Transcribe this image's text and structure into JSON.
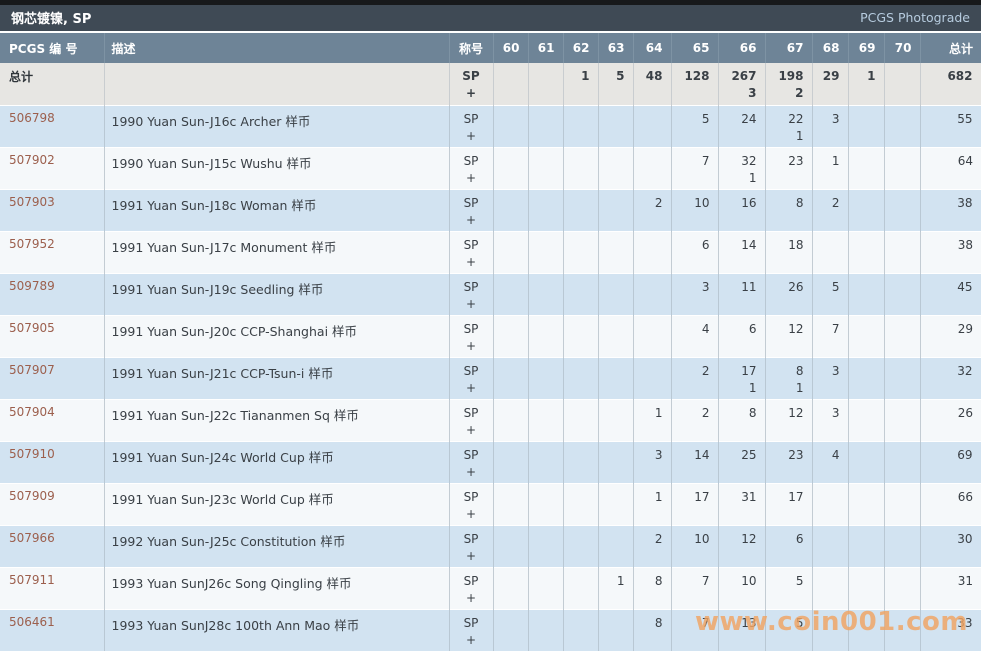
{
  "title_bar": {
    "title": "钢芯镀镍, SP",
    "photograde_link": "PCGS Photograde"
  },
  "watermark": "www.coin001.com",
  "colors": {
    "title_bar_bg": "#3f4a55",
    "header_bg": "#6e8497",
    "totals_row_bg": "#e7e6e3",
    "row_blue_bg": "#d2e3f1",
    "row_white_bg": "#f5f8fa",
    "pcgs_link": "#9c5f4d",
    "photograde_link": "#b7ccdf",
    "watermark": "#f0a362"
  },
  "table": {
    "headers": {
      "pcgs": "PCGS 编 号",
      "desc": "描述",
      "designation": "称号",
      "grades": [
        "60",
        "61",
        "62",
        "63",
        "64",
        "65",
        "66",
        "67",
        "68",
        "69",
        "70"
      ],
      "total": "总计"
    },
    "designation_sp": "SP",
    "designation_plus": "+",
    "totals_row": {
      "label": "总计",
      "desc": "",
      "sp": [
        "",
        "",
        "1",
        "5",
        "48",
        "128",
        "267",
        "198",
        "29",
        "1",
        ""
      ],
      "plus": [
        "",
        "",
        "",
        "",
        "",
        "",
        "3",
        "2",
        "",
        "",
        ""
      ],
      "total": "682"
    },
    "rows": [
      {
        "pcgs_no": "506798",
        "desc": "1990 Yuan Sun-J16c Archer 样币",
        "sp": [
          "",
          "",
          "",
          "",
          "",
          "5",
          "24",
          "22",
          "3",
          "",
          ""
        ],
        "plus": [
          "",
          "",
          "",
          "",
          "",
          "",
          "",
          "1",
          "",
          "",
          ""
        ],
        "total": "55"
      },
      {
        "pcgs_no": "507902",
        "desc": "1990 Yuan Sun-J15c Wushu 样币",
        "sp": [
          "",
          "",
          "",
          "",
          "",
          "7",
          "32",
          "23",
          "1",
          "",
          ""
        ],
        "plus": [
          "",
          "",
          "",
          "",
          "",
          "",
          "1",
          "",
          "",
          "",
          ""
        ],
        "total": "64"
      },
      {
        "pcgs_no": "507903",
        "desc": "1991 Yuan Sun-J18c Woman 样币",
        "sp": [
          "",
          "",
          "",
          "",
          "2",
          "10",
          "16",
          "8",
          "2",
          "",
          ""
        ],
        "plus": [
          "",
          "",
          "",
          "",
          "",
          "",
          "",
          "",
          "",
          "",
          ""
        ],
        "total": "38"
      },
      {
        "pcgs_no": "507952",
        "desc": "1991 Yuan Sun-J17c Monument 样币",
        "sp": [
          "",
          "",
          "",
          "",
          "",
          "6",
          "14",
          "18",
          "",
          "",
          ""
        ],
        "plus": [
          "",
          "",
          "",
          "",
          "",
          "",
          "",
          "",
          "",
          "",
          ""
        ],
        "total": "38"
      },
      {
        "pcgs_no": "509789",
        "desc": "1991 Yuan Sun-J19c Seedling 样币",
        "sp": [
          "",
          "",
          "",
          "",
          "",
          "3",
          "11",
          "26",
          "5",
          "",
          ""
        ],
        "plus": [
          "",
          "",
          "",
          "",
          "",
          "",
          "",
          "",
          "",
          "",
          ""
        ],
        "total": "45"
      },
      {
        "pcgs_no": "507905",
        "desc": "1991 Yuan Sun-J20c CCP-Shanghai 样币",
        "sp": [
          "",
          "",
          "",
          "",
          "",
          "4",
          "6",
          "12",
          "7",
          "",
          ""
        ],
        "plus": [
          "",
          "",
          "",
          "",
          "",
          "",
          "",
          "",
          "",
          "",
          ""
        ],
        "total": "29"
      },
      {
        "pcgs_no": "507907",
        "desc": "1991 Yuan Sun-J21c CCP-Tsun-i 样币",
        "sp": [
          "",
          "",
          "",
          "",
          "",
          "2",
          "17",
          "8",
          "3",
          "",
          ""
        ],
        "plus": [
          "",
          "",
          "",
          "",
          "",
          "",
          "1",
          "1",
          "",
          "",
          ""
        ],
        "total": "32"
      },
      {
        "pcgs_no": "507904",
        "desc": "1991 Yuan Sun-J22c Tiananmen Sq 样币",
        "sp": [
          "",
          "",
          "",
          "",
          "1",
          "2",
          "8",
          "12",
          "3",
          "",
          ""
        ],
        "plus": [
          "",
          "",
          "",
          "",
          "",
          "",
          "",
          "",
          "",
          "",
          ""
        ],
        "total": "26"
      },
      {
        "pcgs_no": "507910",
        "desc": "1991 Yuan Sun-J24c World Cup 样币",
        "sp": [
          "",
          "",
          "",
          "",
          "3",
          "14",
          "25",
          "23",
          "4",
          "",
          ""
        ],
        "plus": [
          "",
          "",
          "",
          "",
          "",
          "",
          "",
          "",
          "",
          "",
          ""
        ],
        "total": "69"
      },
      {
        "pcgs_no": "507909",
        "desc": "1991 Yuan Sun-J23c World Cup 样币",
        "sp": [
          "",
          "",
          "",
          "",
          "1",
          "17",
          "31",
          "17",
          "",
          "",
          ""
        ],
        "plus": [
          "",
          "",
          "",
          "",
          "",
          "",
          "",
          "",
          "",
          "",
          ""
        ],
        "total": "66"
      },
      {
        "pcgs_no": "507966",
        "desc": "1992 Yuan Sun-J25c Constitution 样币",
        "sp": [
          "",
          "",
          "",
          "",
          "2",
          "10",
          "12",
          "6",
          "",
          "",
          ""
        ],
        "plus": [
          "",
          "",
          "",
          "",
          "",
          "",
          "",
          "",
          "",
          "",
          ""
        ],
        "total": "30"
      },
      {
        "pcgs_no": "507911",
        "desc": "1993 Yuan SunJ26c Song Qingling 样币",
        "sp": [
          "",
          "",
          "",
          "1",
          "8",
          "7",
          "10",
          "5",
          "",
          "",
          ""
        ],
        "plus": [
          "",
          "",
          "",
          "",
          "",
          "",
          "",
          "",
          "",
          "",
          ""
        ],
        "total": "31"
      },
      {
        "pcgs_no": "506461",
        "desc": "1993 Yuan SunJ28c 100th Ann Mao 样币",
        "sp": [
          "",
          "",
          "",
          "",
          "8",
          "7",
          "13",
          "5",
          "",
          "",
          ""
        ],
        "plus": [
          "",
          "",
          "",
          "",
          "",
          "",
          "",
          "",
          "",
          "",
          ""
        ],
        "total": "33"
      }
    ]
  }
}
